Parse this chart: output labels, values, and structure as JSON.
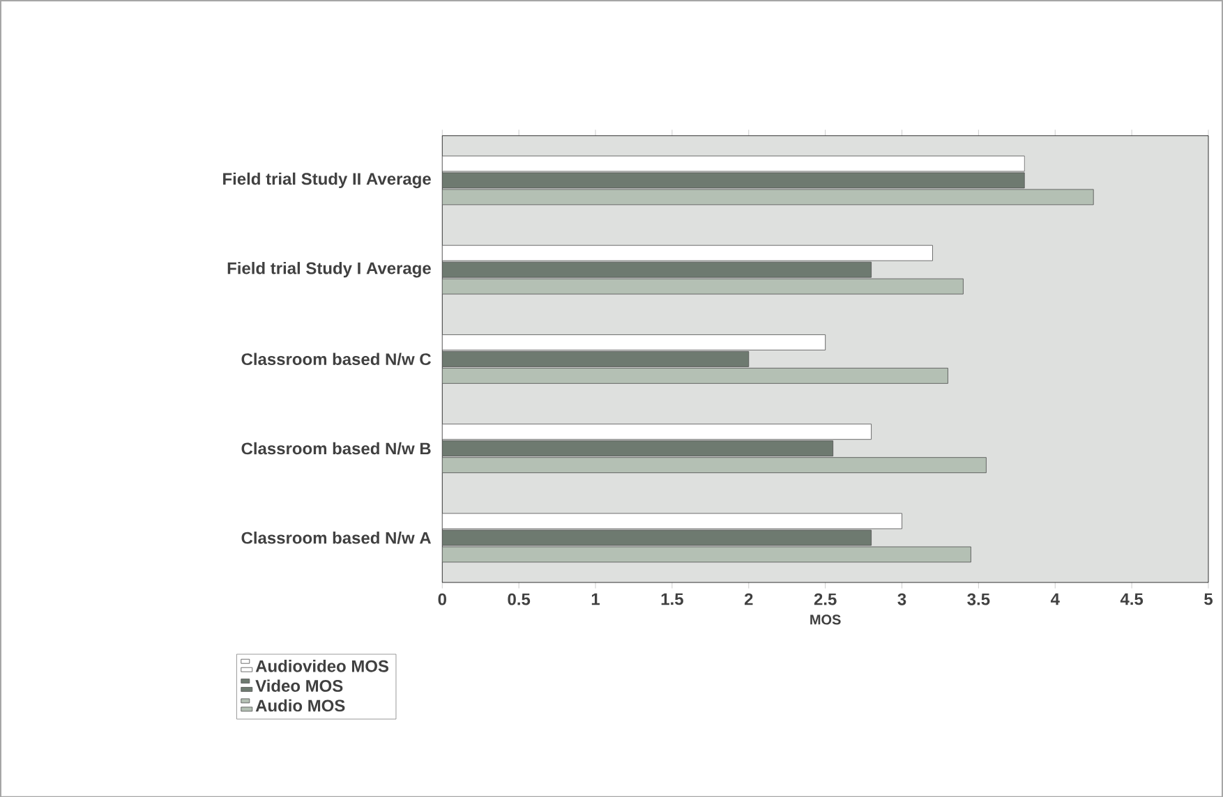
{
  "chart_data": {
    "type": "bar",
    "orientation": "horizontal",
    "xlabel": "MOS",
    "categories": [
      "Field trial Study II Average",
      "Field trial Study I Average",
      "Classroom based N/w C",
      "Classroom based N/w B",
      "Classroom based N/w A"
    ],
    "series": [
      {
        "name": "Audiovideo MOS",
        "color": "#ffffff",
        "values": [
          3.8,
          3.2,
          2.5,
          2.8,
          3.0
        ]
      },
      {
        "name": "Video MOS",
        "color": "#6e7a70",
        "values": [
          3.8,
          2.8,
          2.0,
          2.55,
          2.8
        ]
      },
      {
        "name": "Audio MOS",
        "color": "#b4c0b4",
        "values": [
          4.25,
          3.4,
          3.3,
          3.55,
          3.45
        ]
      }
    ],
    "xlim": [
      0,
      5
    ],
    "xticks": [
      0,
      0.5,
      1,
      1.5,
      2,
      2.5,
      3,
      3.5,
      4,
      4.5,
      5
    ],
    "grid": false,
    "legend": "bottom left"
  }
}
